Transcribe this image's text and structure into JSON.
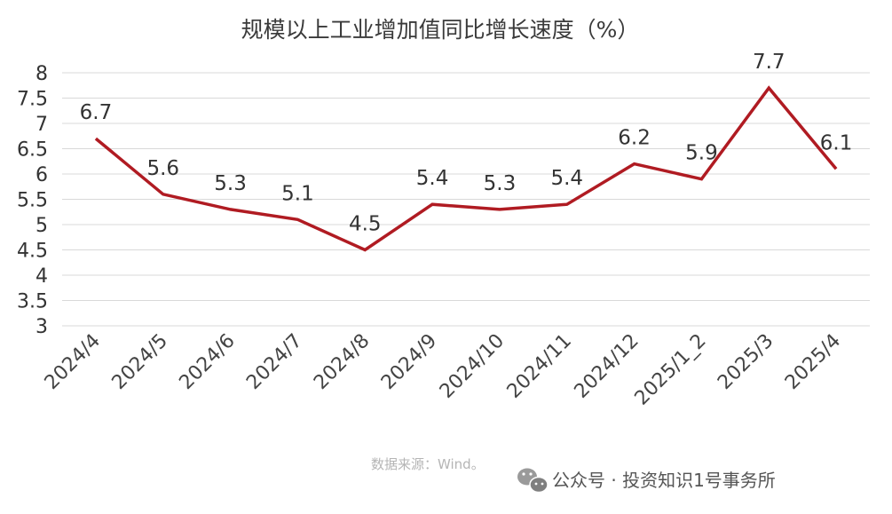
{
  "chart_data": {
    "type": "line",
    "title": "规模以上工业增加值同比增长速度（%）",
    "categories": [
      "2024/4",
      "2024/5",
      "2024/6",
      "2024/7",
      "2024/8",
      "2024/9",
      "2024/10",
      "2024/11",
      "2024/12",
      "2025/1_2",
      "2025/3",
      "2025/4"
    ],
    "series": [
      {
        "values": [
          6.7,
          5.6,
          5.3,
          5.1,
          4.5,
          5.4,
          5.3,
          5.4,
          6.2,
          5.9,
          7.7,
          6.1
        ],
        "color": "#b01b22"
      }
    ],
    "ylim": [
      3,
      8
    ],
    "yticks": [
      "3",
      "3.5",
      "4",
      "4.5",
      "5",
      "5.5",
      "6",
      "6.5",
      "7",
      "7.5",
      "8"
    ],
    "data_labels": [
      "6.7",
      "5.6",
      "5.3",
      "5.1",
      "4.5",
      "5.4",
      "5.3",
      "5.4",
      "6.2",
      "5.9",
      "7.7",
      "6.1"
    ],
    "grid": true,
    "legend": "none"
  },
  "source_note": "数据来源：Wind。",
  "watermark": {
    "icon": "wechat-icon",
    "text": "公众号 · 投资知识1号事务所"
  }
}
